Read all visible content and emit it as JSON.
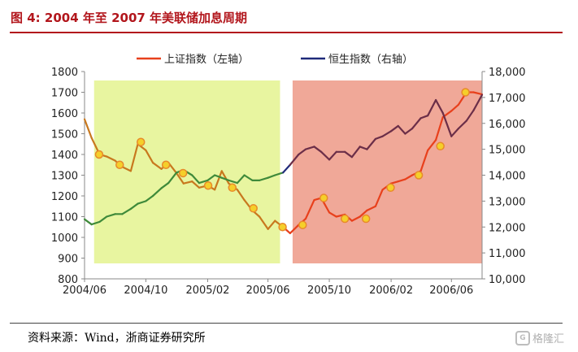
{
  "figure_title": "图 4: 2004 年至 2007 年美联储加息周期",
  "source_note": "资料来源：Wind，浙商证券研究所",
  "watermark": {
    "text": "格隆汇",
    "logo": "G"
  },
  "colors": {
    "accent": "#b2161c",
    "shanghai_line": "#e8401c",
    "hangseng_line": "#1f2a7a",
    "phase1_shanghai": "#c8781e",
    "phase1_hangseng": "#3f8a3a",
    "phase2_hangseng": "#6b2e48",
    "band_green": "#e8f5a0",
    "band_red": "#f0a898",
    "marker_fill": "#f5cf2a",
    "marker_stroke": "#e88a2a"
  },
  "chart_data": {
    "type": "line",
    "x_ticks": [
      "2004/06",
      "2004/10",
      "2005/02",
      "2005/06",
      "2005/10",
      "2006/02",
      "2006/06"
    ],
    "x_range": [
      "2004-06",
      "2006-08"
    ],
    "y_left": {
      "ticks": [
        "800",
        "900",
        "1000",
        "1100",
        "1200",
        "1300",
        "1400",
        "1500",
        "1600",
        "1700",
        "1800"
      ],
      "range": [
        800,
        1800
      ]
    },
    "y_right": {
      "ticks": [
        "10,000",
        "11,000",
        "12,000",
        "13,000",
        "14,000",
        "15,000",
        "16,000",
        "17,000",
        "18,000"
      ],
      "range": [
        10000,
        18000
      ]
    },
    "legend_position": "top",
    "grid": false,
    "series": [
      {
        "name": "上证指数（左轴）",
        "axis": "left",
        "x": [
          "2004-06-01",
          "2004-06-15",
          "2004-07-01",
          "2004-07-15",
          "2004-08-01",
          "2004-08-15",
          "2004-09-01",
          "2004-09-15",
          "2004-10-01",
          "2004-10-15",
          "2004-11-01",
          "2004-11-15",
          "2004-12-01",
          "2004-12-15",
          "2005-01-01",
          "2005-01-15",
          "2005-02-01",
          "2005-02-15",
          "2005-03-01",
          "2005-03-15",
          "2005-04-01",
          "2005-04-15",
          "2005-05-01",
          "2005-05-15",
          "2005-06-01",
          "2005-06-15",
          "2005-07-01",
          "2005-07-15",
          "2005-08-01",
          "2005-08-15",
          "2005-09-01",
          "2005-09-15",
          "2005-10-01",
          "2005-10-15",
          "2005-11-01",
          "2005-11-15",
          "2005-12-01",
          "2005-12-15",
          "2006-01-01",
          "2006-01-15",
          "2006-02-01",
          "2006-02-15",
          "2006-03-01",
          "2006-03-15",
          "2006-04-01",
          "2006-04-15",
          "2006-05-01",
          "2006-05-15",
          "2006-06-01",
          "2006-06-15",
          "2006-07-01",
          "2006-07-15",
          "2006-08-01"
        ],
        "values": [
          1570,
          1480,
          1400,
          1390,
          1370,
          1340,
          1320,
          1450,
          1420,
          1360,
          1330,
          1360,
          1310,
          1260,
          1270,
          1240,
          1250,
          1230,
          1320,
          1260,
          1230,
          1180,
          1130,
          1100,
          1040,
          1080,
          1050,
          1020,
          1060,
          1090,
          1180,
          1190,
          1120,
          1100,
          1110,
          1080,
          1100,
          1130,
          1150,
          1230,
          1260,
          1270,
          1280,
          1300,
          1320,
          1420,
          1470,
          1580,
          1610,
          1640,
          1700,
          1700,
          1690
        ]
      },
      {
        "name": "恒生指数（右轴）",
        "axis": "right",
        "x": [
          "2004-06-01",
          "2004-06-15",
          "2004-07-01",
          "2004-07-15",
          "2004-08-01",
          "2004-08-15",
          "2004-09-01",
          "2004-09-15",
          "2004-10-01",
          "2004-10-15",
          "2004-11-01",
          "2004-11-15",
          "2004-12-01",
          "2004-12-15",
          "2005-01-01",
          "2005-01-15",
          "2005-02-01",
          "2005-02-15",
          "2005-03-01",
          "2005-03-15",
          "2005-04-01",
          "2005-04-15",
          "2005-05-01",
          "2005-05-15",
          "2005-06-01",
          "2005-06-15",
          "2005-07-01",
          "2005-07-15",
          "2005-08-01",
          "2005-08-15",
          "2005-09-01",
          "2005-09-15",
          "2005-10-01",
          "2005-10-15",
          "2005-11-01",
          "2005-11-15",
          "2005-12-01",
          "2005-12-15",
          "2006-01-01",
          "2006-01-15",
          "2006-02-01",
          "2006-02-15",
          "2006-03-01",
          "2006-03-15",
          "2006-04-01",
          "2006-04-15",
          "2006-05-01",
          "2006-05-15",
          "2006-06-01",
          "2006-06-15",
          "2006-07-01",
          "2006-07-15",
          "2006-08-01"
        ],
        "values": [
          12300,
          12100,
          12200,
          12400,
          12500,
          12500,
          12700,
          12900,
          13000,
          13200,
          13500,
          13700,
          14100,
          14200,
          14000,
          13700,
          13800,
          14000,
          13900,
          13800,
          13700,
          14000,
          13800,
          13800,
          13900,
          14000,
          14100,
          14400,
          14800,
          15000,
          15100,
          14900,
          14600,
          14900,
          14900,
          14700,
          15100,
          15000,
          15400,
          15500,
          15700,
          15900,
          15600,
          15800,
          16200,
          16300,
          16900,
          16400,
          15500,
          15800,
          16100,
          16500,
          17100
        ]
      }
    ],
    "event_markers": {
      "axis": "left",
      "x": [
        "2004-06-30",
        "2004-08-10",
        "2004-09-21",
        "2004-11-10",
        "2004-12-14",
        "2005-02-02",
        "2005-03-22",
        "2005-05-03",
        "2005-06-30",
        "2005-08-09",
        "2005-09-20",
        "2005-11-01",
        "2005-12-13",
        "2006-01-31",
        "2006-03-28",
        "2006-05-10",
        "2006-06-29"
      ],
      "values": [
        1400,
        1350,
        1460,
        1350,
        1310,
        1250,
        1240,
        1140,
        1050,
        1060,
        1190,
        1090,
        1090,
        1240,
        1300,
        1440,
        1700
      ]
    },
    "shaded_periods": [
      {
        "from": "2004-06-20",
        "to": "2005-06-25",
        "label": ""
      },
      {
        "from": "2005-07-20",
        "to": "2006-08-01",
        "label": ""
      }
    ]
  }
}
